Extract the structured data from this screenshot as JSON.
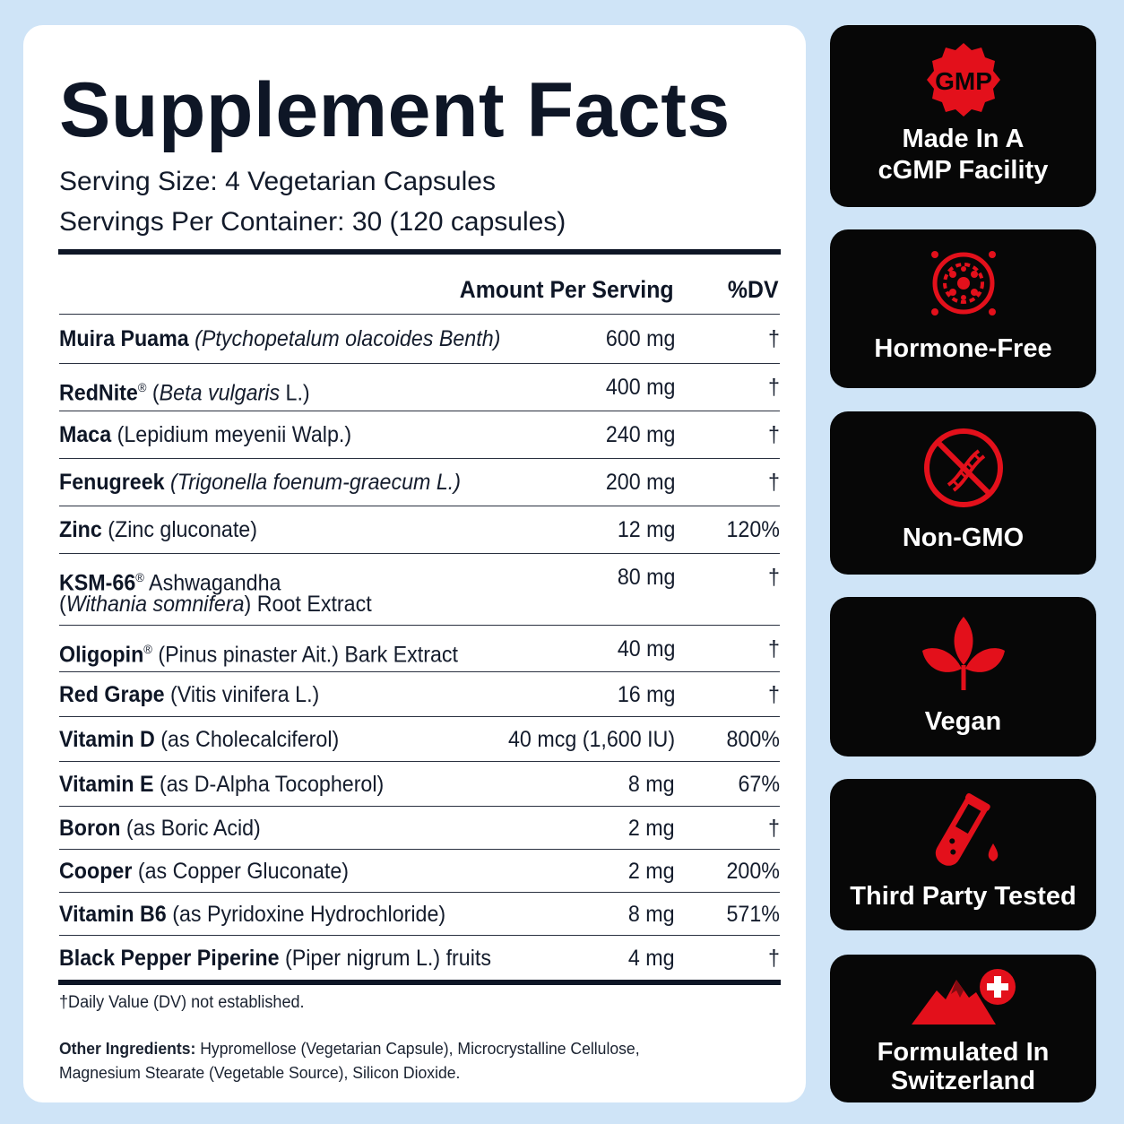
{
  "title": "Supplement Facts",
  "serving_size": "Serving Size: 4 Vegetarian Capsules",
  "servings_per_container": "Servings Per Container: 30 (120 capsules)",
  "columns": {
    "amount": "Amount Per Serving",
    "dv": "%DV"
  },
  "ingredients": [
    {
      "name": "Muira Puama",
      "detail": "(Ptychopetalum olacoides Benth)",
      "amount": "600 mg",
      "dv": "†"
    },
    {
      "name": "RedNite",
      "detail": "(Beta vulgaris L.)",
      "amount": "400 mg",
      "dv": "†"
    },
    {
      "name": "Maca",
      "detail": "(Lepidium meyenii Walp.)",
      "amount": "240 mg",
      "dv": "†"
    },
    {
      "name": "Fenugreek",
      "detail": "(Trigonella foenum-graecum L.)",
      "amount": "200 mg",
      "dv": "†"
    },
    {
      "name": "Zinc",
      "detail": "(Zinc gluconate)",
      "amount": "12 mg",
      "dv": "120%"
    },
    {
      "name": "KSM-66",
      "detail": "Ashwagandha",
      "detail2": "(Withania somnifera) Root Extract",
      "amount": "80 mg",
      "dv": "†"
    },
    {
      "name": "Oligopin",
      "detail": "(Pinus pinaster Ait.) Bark Extract",
      "amount": "40 mg",
      "dv": "†"
    },
    {
      "name": "Red Grape",
      "detail": "(Vitis vinifera L.)",
      "amount": "16 mg",
      "dv": "†"
    },
    {
      "name": "Vitamin D",
      "detail": "(as Cholecalciferol)",
      "amount": "40 mcg (1,600 IU)",
      "dv": "800%"
    },
    {
      "name": "Vitamin E",
      "detail": "(as D-Alpha Tocopherol)",
      "amount": "8 mg",
      "dv": "67%"
    },
    {
      "name": "Boron",
      "detail": "(as Boric Acid)",
      "amount": "2 mg",
      "dv": "†"
    },
    {
      "name": "Cooper",
      "detail": "(as Copper Gluconate)",
      "amount": "2 mg",
      "dv": "200%"
    },
    {
      "name": "Vitamin B6",
      "detail": "(as Pyridoxine Hydrochloride)",
      "amount": "8 mg",
      "dv": "571%"
    },
    {
      "name": "Black Pepper Piperine",
      "detail": "(Piper nigrum L.) fruits",
      "amount": "4 mg",
      "dv": "†"
    }
  ],
  "registered_mark": "®",
  "footnote": "†Daily Value (DV) not established.",
  "other_ingredients_label": "Other Ingredients:",
  "other_ingredients": "Hypromellose (Vegetarian Capsule), Microcrystalline Cellulose, Magnesium Stearate (Vegetable Source), Silicon Dioxide.",
  "badges": [
    {
      "icon": "gmp-seal-icon",
      "seal_text": "GMP",
      "line1": "Made In A",
      "line2": "cGMP Facility"
    },
    {
      "icon": "hormone-molecule-icon",
      "line1": "Hormone-Free"
    },
    {
      "icon": "no-dna-icon",
      "line1": "Non-GMO"
    },
    {
      "icon": "leaf-icon",
      "line1": "Vegan"
    },
    {
      "icon": "test-tube-icon",
      "line1": "Third Party Tested"
    },
    {
      "icon": "swiss-mountain-icon",
      "line1": "Formulated In",
      "line2": "Switzerland"
    }
  ],
  "colors": {
    "accent_red": "#e3101b",
    "badge_bg": "#070707",
    "text_dark": "#0e1626",
    "background": "#cfe4f7"
  }
}
